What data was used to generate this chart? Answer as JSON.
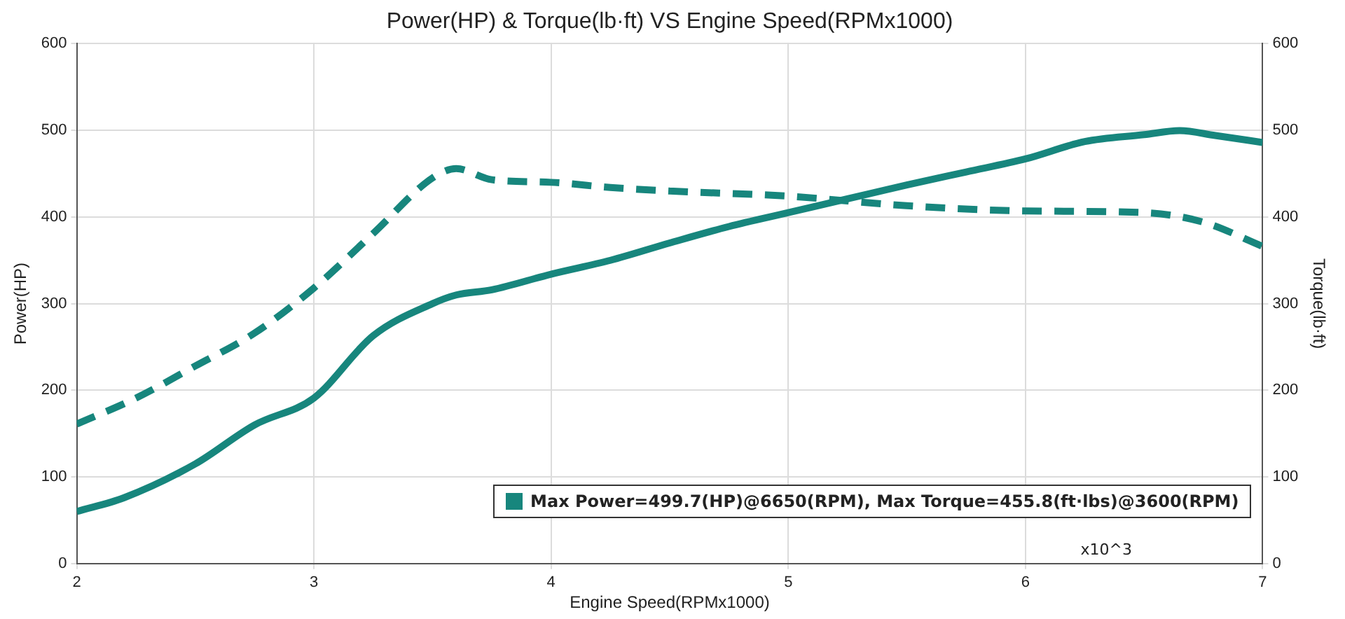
{
  "chart_data": {
    "type": "line",
    "title": "Power(HP) & Torque(lb·ft) VS Engine Speed(RPMx1000)",
    "xlabel": "Engine Speed(RPMx1000)",
    "ylabel": "Power(HP)",
    "y2label": "Torque(lb·ft)",
    "series": [
      {
        "color": "#17867d",
        "line_style": "solid",
        "x": [
          2.0,
          2.2,
          2.5,
          2.75,
          3.0,
          3.25,
          3.5,
          3.6,
          3.75,
          4.0,
          4.25,
          4.5,
          4.75,
          5.0,
          5.25,
          5.5,
          5.75,
          6.0,
          6.25,
          6.5,
          6.65,
          6.8,
          7.0
        ],
        "values": [
          60,
          76,
          115,
          160,
          191,
          263,
          300,
          310,
          316,
          334,
          350,
          370,
          389,
          405,
          421,
          437,
          452,
          467,
          487,
          495,
          499.7,
          494,
          486
        ]
      },
      {
        "color": "#17867d",
        "line_style": "dashed",
        "axis": "y2",
        "x": [
          2.0,
          2.25,
          2.5,
          2.75,
          3.0,
          3.25,
          3.5,
          3.6,
          3.75,
          4.0,
          4.25,
          4.5,
          5.0,
          5.5,
          6.0,
          6.5,
          6.75,
          7.0
        ],
        "values": [
          161,
          191,
          228,
          266,
          318,
          381,
          445,
          455.8,
          443,
          440,
          434,
          430,
          424,
          413,
          407,
          405,
          394,
          366
        ]
      }
    ],
    "xlim": [
      2,
      7
    ],
    "xticks": [
      2,
      3,
      4,
      5,
      6,
      7
    ],
    "ylim": [
      0,
      600
    ],
    "yticks": [
      0,
      100,
      200,
      300,
      400,
      500,
      600
    ],
    "y2lim": [
      0,
      600
    ],
    "y2ticks": [
      0,
      100,
      200,
      300,
      400,
      500,
      600
    ],
    "grid": true,
    "legend": false,
    "marker": "none",
    "annotations": [
      "Max Power=499.7(HP)@6650(RPM), Max Torque=455.8(ft·lbs)@3600(RPM)",
      "x10^3"
    ]
  }
}
